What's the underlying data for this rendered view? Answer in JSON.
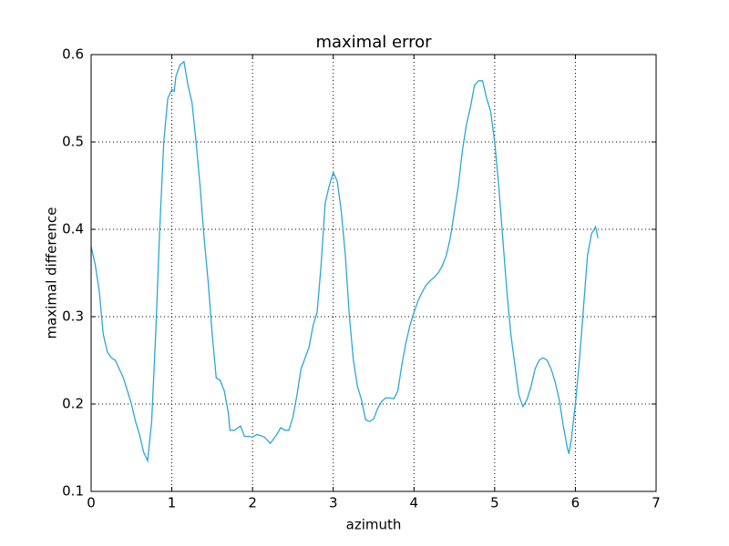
{
  "chart_data": {
    "type": "line",
    "title": "maximal error",
    "x_label": "azimuth",
    "y_label": "maximal difference",
    "x": [
      0,
      0.05,
      0.1,
      0.15,
      0.2,
      0.25,
      0.3,
      0.35,
      0.4,
      0.45,
      0.5,
      0.55,
      0.6,
      0.65,
      0.7,
      0.75,
      0.8,
      0.85,
      0.9,
      0.95,
      1.0,
      1.03,
      1.05,
      1.1,
      1.15,
      1.2,
      1.25,
      1.3,
      1.35,
      1.4,
      1.45,
      1.5,
      1.55,
      1.6,
      1.65,
      1.7,
      1.72,
      1.78,
      1.85,
      1.9,
      1.95,
      2.0,
      2.05,
      2.1,
      2.15,
      2.2,
      2.22,
      2.3,
      2.35,
      2.4,
      2.45,
      2.5,
      2.55,
      2.6,
      2.7,
      2.75,
      2.8,
      2.85,
      2.9,
      2.95,
      3.0,
      3.05,
      3.1,
      3.15,
      3.2,
      3.25,
      3.3,
      3.35,
      3.4,
      3.45,
      3.5,
      3.55,
      3.6,
      3.65,
      3.7,
      3.75,
      3.8,
      3.85,
      3.9,
      3.95,
      4.0,
      4.05,
      4.1,
      4.15,
      4.2,
      4.25,
      4.3,
      4.35,
      4.4,
      4.45,
      4.5,
      4.55,
      4.6,
      4.65,
      4.7,
      4.75,
      4.8,
      4.85,
      4.9,
      4.95,
      5.0,
      5.05,
      5.1,
      5.15,
      5.2,
      5.25,
      5.3,
      5.35,
      5.4,
      5.45,
      5.5,
      5.55,
      5.6,
      5.65,
      5.7,
      5.75,
      5.8,
      5.85,
      5.9,
      5.92,
      5.95,
      6.0,
      6.05,
      6.1,
      6.15,
      6.2,
      6.25,
      6.28
    ],
    "series": [
      {
        "name": "maximal difference",
        "color": "#29a8d6",
        "values": [
          0.38,
          0.36,
          0.33,
          0.28,
          0.26,
          0.253,
          0.25,
          0.24,
          0.23,
          0.215,
          0.2,
          0.18,
          0.165,
          0.145,
          0.135,
          0.18,
          0.28,
          0.4,
          0.5,
          0.55,
          0.56,
          0.558,
          0.575,
          0.588,
          0.592,
          0.565,
          0.545,
          0.5,
          0.45,
          0.39,
          0.34,
          0.28,
          0.23,
          0.227,
          0.215,
          0.19,
          0.17,
          0.17,
          0.175,
          0.163,
          0.163,
          0.162,
          0.165,
          0.164,
          0.162,
          0.157,
          0.155,
          0.165,
          0.173,
          0.17,
          0.17,
          0.185,
          0.21,
          0.24,
          0.265,
          0.29,
          0.305,
          0.36,
          0.43,
          0.45,
          0.465,
          0.455,
          0.42,
          0.37,
          0.3,
          0.25,
          0.22,
          0.205,
          0.182,
          0.18,
          0.183,
          0.195,
          0.203,
          0.207,
          0.207,
          0.206,
          0.215,
          0.245,
          0.27,
          0.29,
          0.305,
          0.318,
          0.328,
          0.336,
          0.341,
          0.345,
          0.35,
          0.358,
          0.37,
          0.39,
          0.42,
          0.45,
          0.49,
          0.52,
          0.54,
          0.565,
          0.57,
          0.57,
          0.55,
          0.535,
          0.5,
          0.45,
          0.39,
          0.33,
          0.28,
          0.245,
          0.21,
          0.197,
          0.205,
          0.22,
          0.24,
          0.25,
          0.253,
          0.25,
          0.24,
          0.225,
          0.205,
          0.175,
          0.15,
          0.143,
          0.16,
          0.2,
          0.25,
          0.31,
          0.37,
          0.395,
          0.403,
          0.39
        ]
      }
    ],
    "xlim": [
      0,
      7
    ],
    "xticks": [
      0,
      1,
      2,
      3,
      4,
      5,
      6,
      7
    ],
    "ylim": [
      0.1,
      0.6
    ],
    "yticks": [
      0.1,
      0.2,
      0.3,
      0.4,
      0.5,
      0.6
    ],
    "grid": true
  }
}
